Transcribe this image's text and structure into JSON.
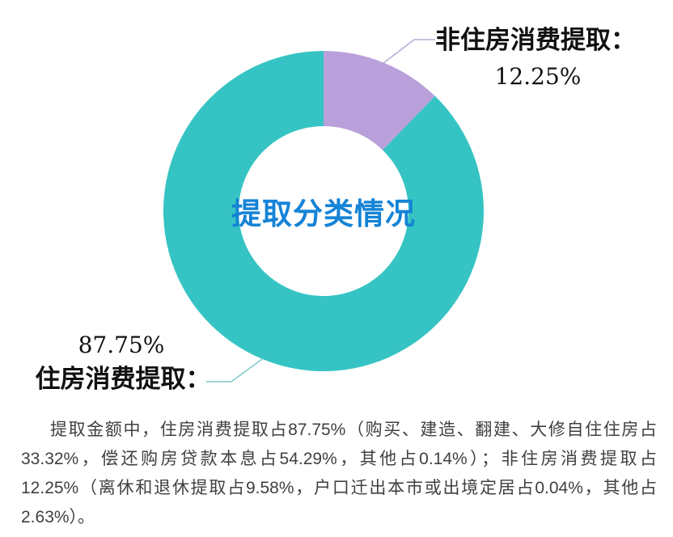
{
  "chart_data": {
    "type": "pie",
    "subtype": "donut",
    "title": "提取分类情况",
    "unit": "%",
    "start_angle": "top, clockwise",
    "legend_position": "callout-labels",
    "segments": [
      {
        "label": "非住房消费提取",
        "value": 12.25,
        "color": "#b9a0db"
      },
      {
        "label": "住房消费提取",
        "value": 87.75,
        "color": "#35c4c3"
      }
    ]
  },
  "center_label": "提取分类情况",
  "callouts": {
    "nonhousing": {
      "label": "非住房消费提取：",
      "value": "12.25%"
    },
    "housing": {
      "value": "87.75%",
      "label": "住房消费提取："
    }
  },
  "paragraph": {
    "lines": [
      "提取金额中，住房消费提取占87.75%（购买、建造、翻建、大修自住住房占",
      "33.32%，偿还购房贷款本息占54.29%，其他占0.14%）；非住房消费提取占",
      "12.25%（离休和退休提取占9.58%，户口迁出本市或出境定居占0.04%，其他占",
      "2.63%）。"
    ]
  },
  "theme": {
    "center_text_color": "#1583d6",
    "label_color": "#111111",
    "paragraph_color": "#404040",
    "leader_nonhousing_color": "#b3afd8",
    "leader_housing_color": "#7fc9cb",
    "background_color": "#ffffff"
  }
}
